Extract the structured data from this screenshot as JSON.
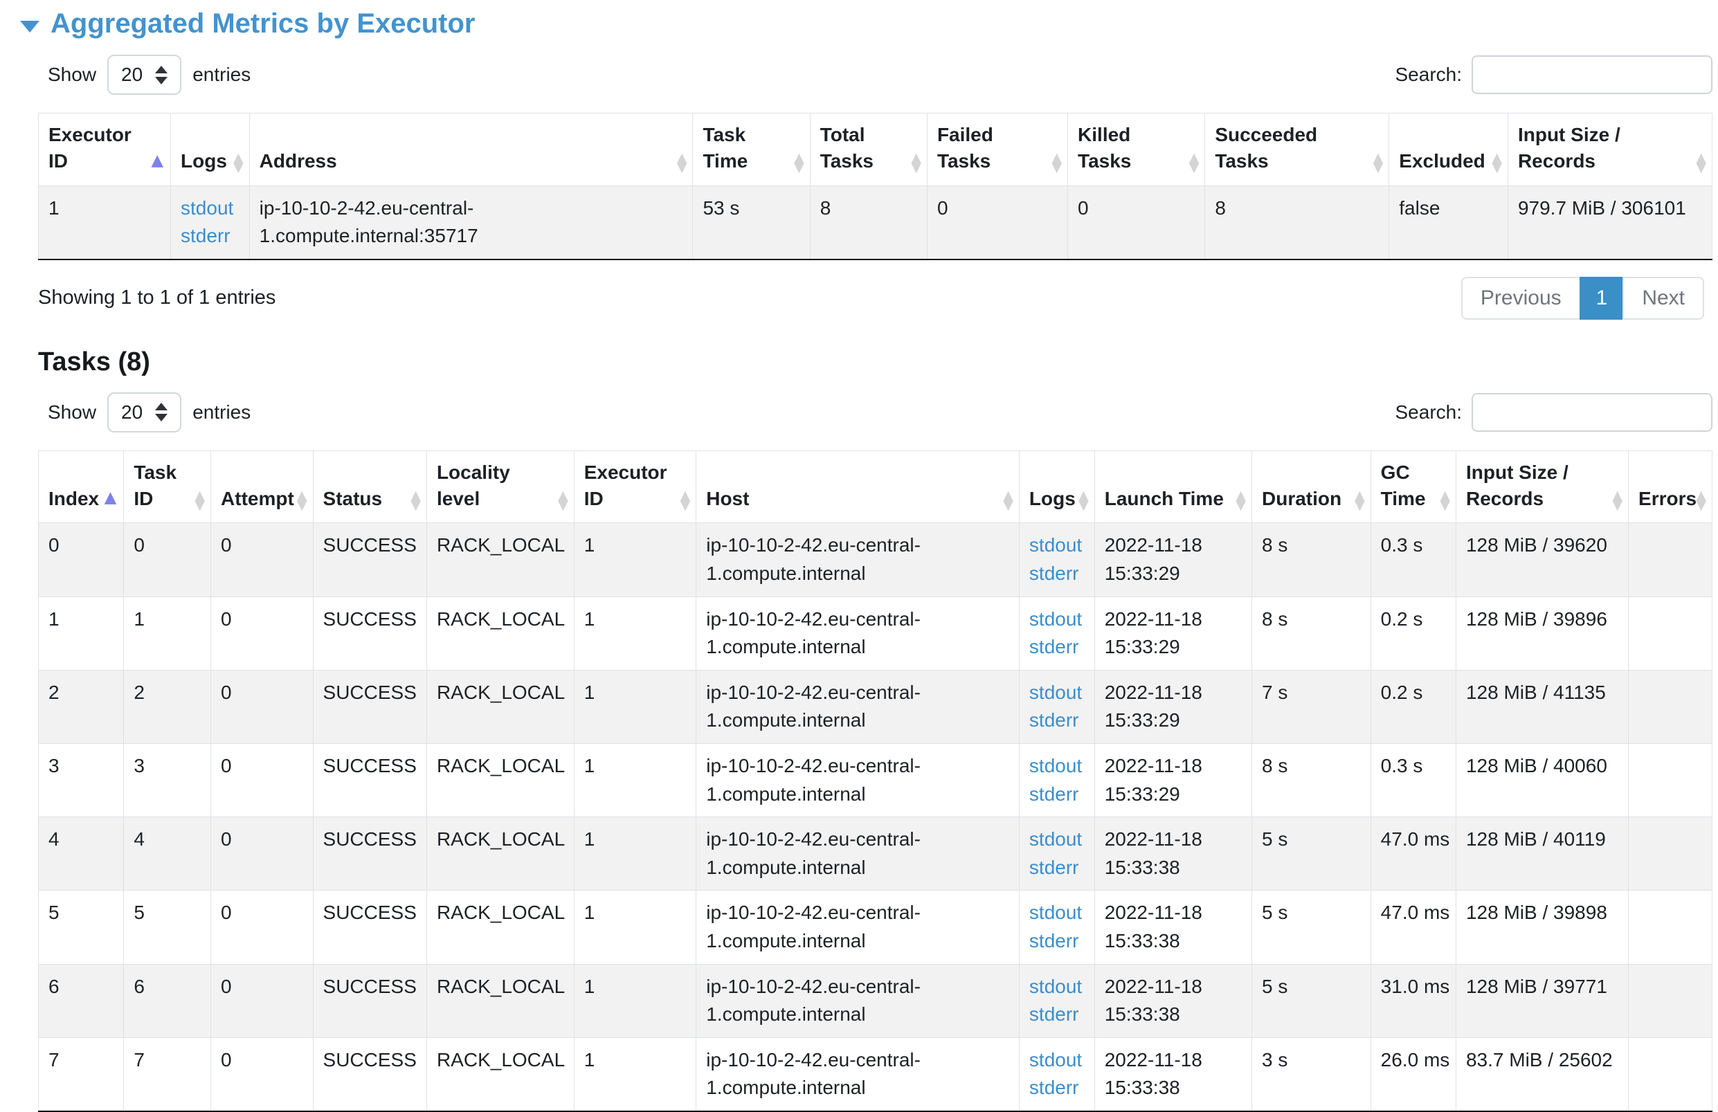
{
  "colors": {
    "title_blue": "#4393ce",
    "link_blue": "#3c8dcc",
    "sort_active": "#7d81ea",
    "sort_inactive": "#d4d4d4",
    "pagination_active_bg": "#3a8fc7",
    "stripe_bg": "#f2f2f2"
  },
  "executor_section": {
    "title": "Aggregated Metrics by Executor",
    "show_label": "Show",
    "page_size": "20",
    "entries_label": "entries",
    "search_label": "Search:",
    "search_value": "",
    "columns": [
      {
        "label": "Executor ID",
        "field": "executor_id",
        "type": "text",
        "sort": "asc",
        "nowrap": true
      },
      {
        "label": "Logs",
        "field": "logs",
        "type": "links",
        "sort": "both",
        "nowrap": false
      },
      {
        "label": "Address",
        "field": "address",
        "type": "text",
        "sort": "both",
        "nowrap": false
      },
      {
        "label": "Task Time",
        "field": "task_time",
        "type": "text",
        "sort": "both",
        "nowrap": true
      },
      {
        "label": "Total Tasks",
        "field": "total_tasks",
        "type": "text",
        "sort": "both",
        "nowrap": true
      },
      {
        "label": "Failed Tasks",
        "field": "failed_tasks",
        "type": "text",
        "sort": "both",
        "nowrap": true
      },
      {
        "label": "Killed Tasks",
        "field": "killed_tasks",
        "type": "text",
        "sort": "both",
        "nowrap": true
      },
      {
        "label": "Succeeded Tasks",
        "field": "succeeded_tasks",
        "type": "text",
        "sort": "both",
        "nowrap": true
      },
      {
        "label": "Excluded",
        "field": "excluded",
        "type": "text",
        "sort": "both",
        "nowrap": true
      },
      {
        "label": "Input Size / Records",
        "field": "input_size",
        "type": "text",
        "sort": "both",
        "nowrap": true
      }
    ],
    "rows": [
      {
        "executor_id": "1",
        "logs": [
          "stdout",
          "stderr"
        ],
        "address": "ip-10-10-2-42.eu-central-1.compute.internal:35717",
        "task_time": "53 s",
        "total_tasks": "8",
        "failed_tasks": "0",
        "killed_tasks": "0",
        "succeeded_tasks": "8",
        "excluded": "false",
        "input_size": "979.7 MiB / 306101"
      }
    ],
    "info": "Showing 1 to 1 of 1 entries",
    "pagination": {
      "previous": "Previous",
      "page": "1",
      "next": "Next"
    }
  },
  "tasks_section": {
    "title": "Tasks (8)",
    "show_label": "Show",
    "page_size": "20",
    "entries_label": "entries",
    "search_label": "Search:",
    "search_value": "",
    "columns": [
      {
        "label": "Index",
        "field": "index",
        "type": "text",
        "sort": "asc",
        "nowrap": true
      },
      {
        "label": "Task ID",
        "field": "task_id",
        "type": "text",
        "sort": "both",
        "nowrap": true
      },
      {
        "label": "Attempt",
        "field": "attempt",
        "type": "text",
        "sort": "both",
        "nowrap": true
      },
      {
        "label": "Status",
        "field": "status",
        "type": "text",
        "sort": "both",
        "nowrap": true
      },
      {
        "label": "Locality level",
        "field": "locality_level",
        "type": "text",
        "sort": "both",
        "nowrap": true
      },
      {
        "label": "Executor ID",
        "field": "executor_id",
        "type": "text",
        "sort": "both",
        "nowrap": true
      },
      {
        "label": "Host",
        "field": "host",
        "type": "text",
        "sort": "both",
        "nowrap": false
      },
      {
        "label": "Logs",
        "field": "logs",
        "type": "links",
        "sort": "both",
        "nowrap": false
      },
      {
        "label": "Launch Time",
        "field": "launch_time",
        "type": "text",
        "sort": "both",
        "nowrap": false
      },
      {
        "label": "Duration",
        "field": "duration",
        "type": "text",
        "sort": "both",
        "nowrap": true
      },
      {
        "label": "GC Time",
        "field": "gc_time",
        "type": "text",
        "sort": "both",
        "nowrap": true
      },
      {
        "label": "Input Size / Records",
        "field": "input_size",
        "type": "text",
        "sort": "both",
        "nowrap": true
      },
      {
        "label": "Errors",
        "field": "errors",
        "type": "text",
        "sort": "both",
        "nowrap": true
      }
    ],
    "rows": [
      {
        "index": "0",
        "task_id": "0",
        "attempt": "0",
        "status": "SUCCESS",
        "locality_level": "RACK_LOCAL",
        "executor_id": "1",
        "host": "ip-10-10-2-42.eu-central-1.compute.internal",
        "logs": [
          "stdout",
          "stderr"
        ],
        "launch_time": "2022-11-18 15:33:29",
        "duration": "8 s",
        "gc_time": "0.3 s",
        "input_size": "128 MiB / 39620",
        "errors": ""
      },
      {
        "index": "1",
        "task_id": "1",
        "attempt": "0",
        "status": "SUCCESS",
        "locality_level": "RACK_LOCAL",
        "executor_id": "1",
        "host": "ip-10-10-2-42.eu-central-1.compute.internal",
        "logs": [
          "stdout",
          "stderr"
        ],
        "launch_time": "2022-11-18 15:33:29",
        "duration": "8 s",
        "gc_time": "0.2 s",
        "input_size": "128 MiB / 39896",
        "errors": ""
      },
      {
        "index": "2",
        "task_id": "2",
        "attempt": "0",
        "status": "SUCCESS",
        "locality_level": "RACK_LOCAL",
        "executor_id": "1",
        "host": "ip-10-10-2-42.eu-central-1.compute.internal",
        "logs": [
          "stdout",
          "stderr"
        ],
        "launch_time": "2022-11-18 15:33:29",
        "duration": "7 s",
        "gc_time": "0.2 s",
        "input_size": "128 MiB / 41135",
        "errors": ""
      },
      {
        "index": "3",
        "task_id": "3",
        "attempt": "0",
        "status": "SUCCESS",
        "locality_level": "RACK_LOCAL",
        "executor_id": "1",
        "host": "ip-10-10-2-42.eu-central-1.compute.internal",
        "logs": [
          "stdout",
          "stderr"
        ],
        "launch_time": "2022-11-18 15:33:29",
        "duration": "8 s",
        "gc_time": "0.3 s",
        "input_size": "128 MiB / 40060",
        "errors": ""
      },
      {
        "index": "4",
        "task_id": "4",
        "attempt": "0",
        "status": "SUCCESS",
        "locality_level": "RACK_LOCAL",
        "executor_id": "1",
        "host": "ip-10-10-2-42.eu-central-1.compute.internal",
        "logs": [
          "stdout",
          "stderr"
        ],
        "launch_time": "2022-11-18 15:33:38",
        "duration": "5 s",
        "gc_time": "47.0 ms",
        "input_size": "128 MiB / 40119",
        "errors": ""
      },
      {
        "index": "5",
        "task_id": "5",
        "attempt": "0",
        "status": "SUCCESS",
        "locality_level": "RACK_LOCAL",
        "executor_id": "1",
        "host": "ip-10-10-2-42.eu-central-1.compute.internal",
        "logs": [
          "stdout",
          "stderr"
        ],
        "launch_time": "2022-11-18 15:33:38",
        "duration": "5 s",
        "gc_time": "47.0 ms",
        "input_size": "128 MiB / 39898",
        "errors": ""
      },
      {
        "index": "6",
        "task_id": "6",
        "attempt": "0",
        "status": "SUCCESS",
        "locality_level": "RACK_LOCAL",
        "executor_id": "1",
        "host": "ip-10-10-2-42.eu-central-1.compute.internal",
        "logs": [
          "stdout",
          "stderr"
        ],
        "launch_time": "2022-11-18 15:33:38",
        "duration": "5 s",
        "gc_time": "31.0 ms",
        "input_size": "128 MiB / 39771",
        "errors": ""
      },
      {
        "index": "7",
        "task_id": "7",
        "attempt": "0",
        "status": "SUCCESS",
        "locality_level": "RACK_LOCAL",
        "executor_id": "1",
        "host": "ip-10-10-2-42.eu-central-1.compute.internal",
        "logs": [
          "stdout",
          "stderr"
        ],
        "launch_time": "2022-11-18 15:33:38",
        "duration": "3 s",
        "gc_time": "26.0 ms",
        "input_size": "83.7 MiB / 25602",
        "errors": ""
      }
    ]
  }
}
